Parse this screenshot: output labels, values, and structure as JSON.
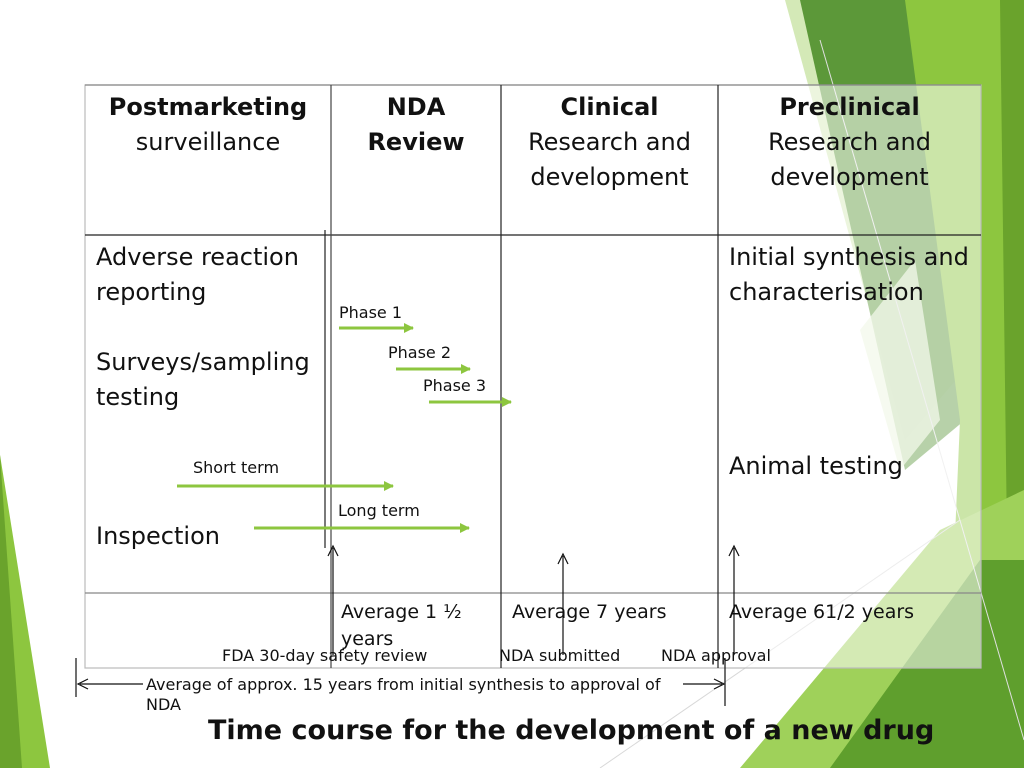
{
  "colors": {
    "accent": "#8dc63f",
    "arrow": "#8dc63f",
    "grid": "#222222"
  },
  "columns": [
    {
      "bold": "Postmarketing",
      "normal": [
        "surveillance"
      ]
    },
    {
      "bold": "NDA",
      "bold2": "Review",
      "normal": []
    },
    {
      "bold": "Clinical",
      "normal": [
        "Research and",
        "development"
      ]
    },
    {
      "bold": "Preclinical",
      "normal": [
        "Research and",
        "development"
      ]
    }
  ],
  "postmarketing": {
    "adverse_1": "Adverse reaction",
    "adverse_2": "reporting",
    "surveys_1": "Surveys/sampling",
    "surveys_2": "testing",
    "inspection": "Inspection"
  },
  "preclinical": {
    "synthesis_1": "Initial synthesis and",
    "synthesis_2": "characterisation",
    "animal": "Animal testing"
  },
  "phases": [
    "Phase 1",
    "Phase 2",
    "Phase 3"
  ],
  "terms": {
    "short": "Short term",
    "long": "Long term"
  },
  "averages": {
    "nda_1": "Average 1 ½",
    "nda_2": "years",
    "clinical": "Average 7 years",
    "preclinical": "Average 61/2 years"
  },
  "milestones": {
    "safety_review": "FDA 30-day safety review",
    "nda_submitted": "NDA submitted",
    "nda_approval": "NDA approval"
  },
  "span": {
    "line1": "Average of approx. 15 years from initial synthesis to approval of",
    "line2": "NDA"
  },
  "title": "Time course for the development of a new drug"
}
